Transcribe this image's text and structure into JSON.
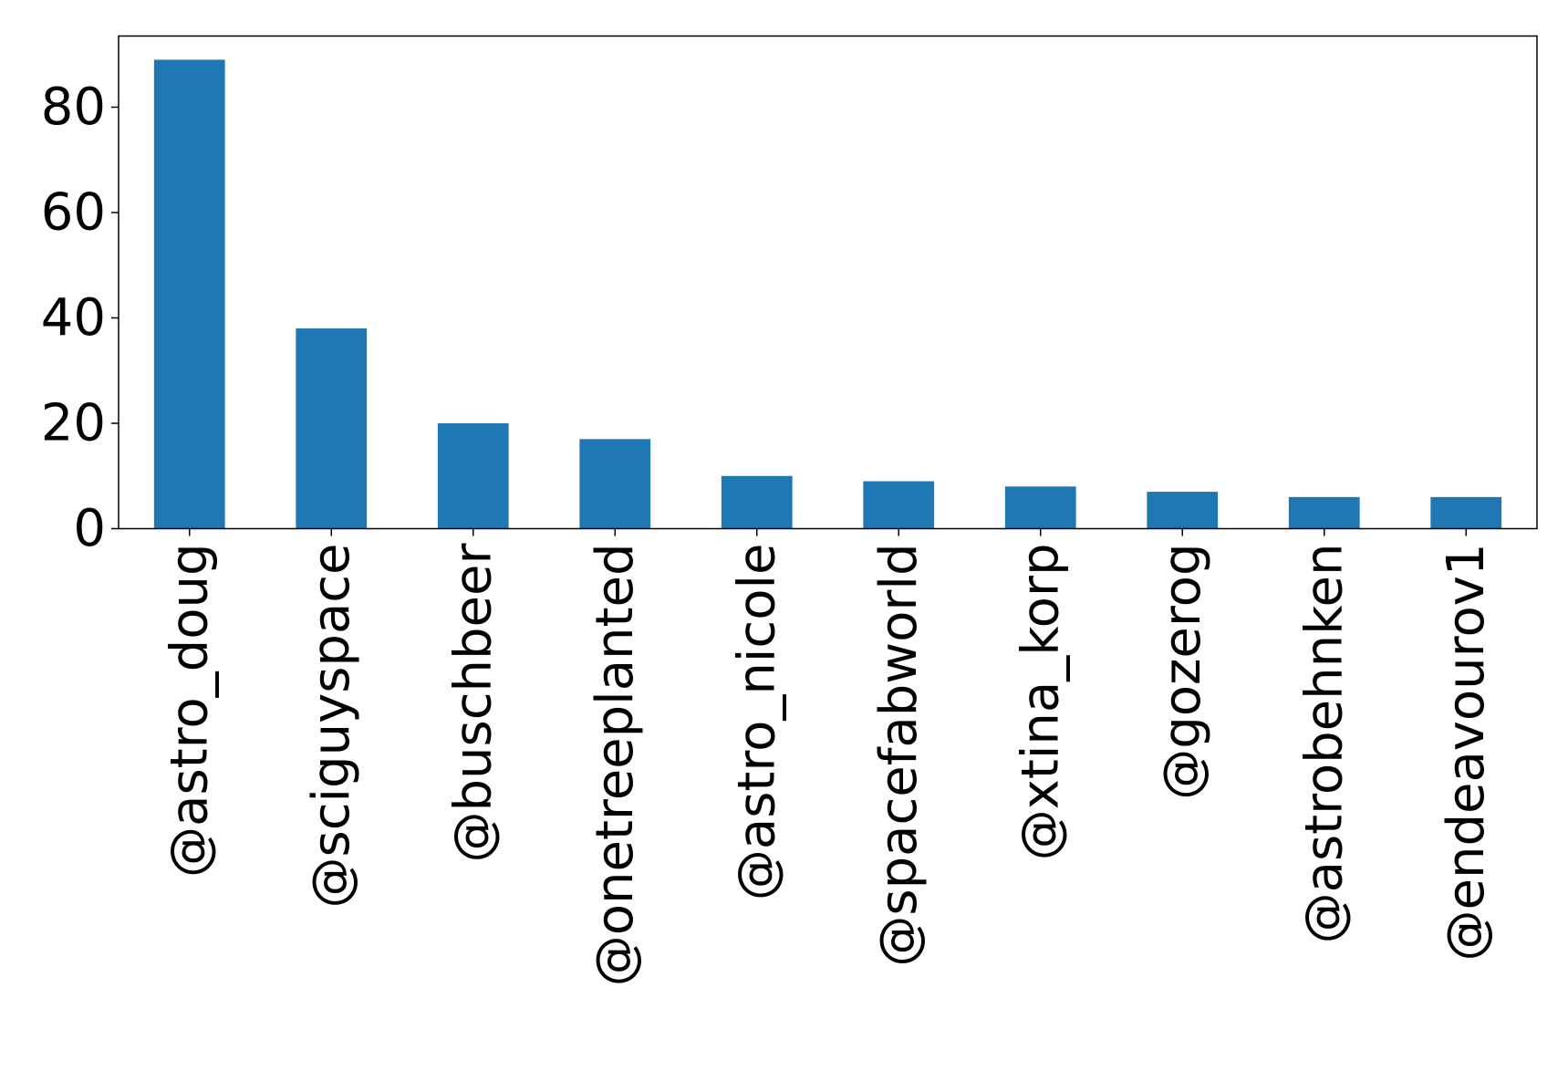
{
  "chart_data": {
    "type": "bar",
    "title": "",
    "xlabel": "",
    "ylabel": "",
    "categories": [
      "@astro_doug",
      "@sciguyspace",
      "@buschbeer",
      "@onetreeplanted",
      "@astro_nicole",
      "@spacefabworld",
      "@xtina_korp",
      "@gozerog",
      "@astrobehnken",
      "@endeavourov1"
    ],
    "values": [
      89,
      38,
      20,
      17,
      10,
      9,
      8,
      7,
      6,
      6
    ],
    "ylim": [
      0,
      93.5
    ],
    "yticks": [
      0,
      20,
      40,
      60,
      80
    ],
    "yticklabels": [
      "0",
      "20",
      "40",
      "60",
      "80"
    ],
    "bar_color": "#1f77b4",
    "grid": false,
    "legend": "none"
  }
}
